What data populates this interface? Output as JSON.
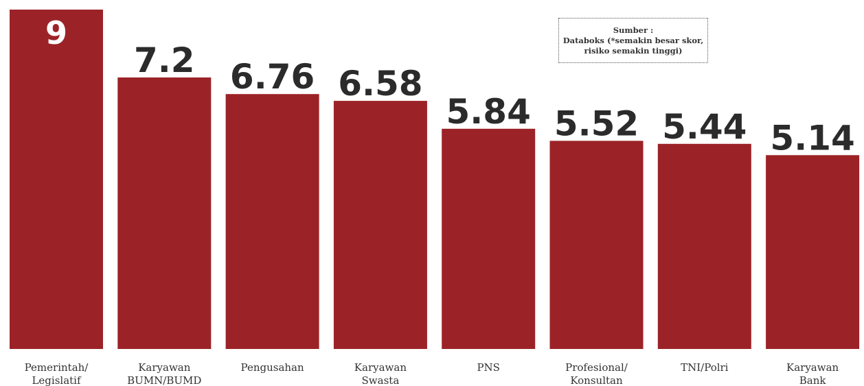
{
  "chart_data": {
    "type": "bar",
    "categories": [
      [
        "Pemerintah/",
        "Legislatif"
      ],
      [
        "Karyawan",
        "BUMN/BUMD"
      ],
      [
        "Pengusahan"
      ],
      [
        "Karyawan",
        "Swasta"
      ],
      [
        "PNS"
      ],
      [
        "Profesional/",
        "Konsultan"
      ],
      [
        "TNI/Polri"
      ],
      [
        "Karyawan",
        "Bank"
      ]
    ],
    "values": [
      9,
      7.2,
      6.76,
      6.58,
      5.84,
      5.52,
      5.44,
      5.14
    ],
    "value_labels": [
      "9",
      "7.2",
      "6.76",
      "6.58",
      "5.84",
      "5.52",
      "5.44",
      "5.14"
    ],
    "ylim": [
      0,
      9
    ],
    "grid": false,
    "bar_color": "#9b2327"
  },
  "source_note": {
    "line1": "Sumber :",
    "line2": "Databoks (*semakin besar skor,",
    "line3": "risiko semakin tinggi)"
  }
}
